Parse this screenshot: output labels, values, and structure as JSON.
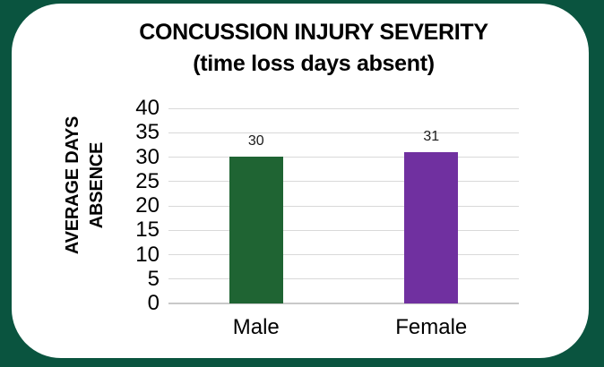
{
  "page": {
    "frame_color": "#0a543f",
    "card_color": "#ffffff"
  },
  "chart_data": {
    "type": "bar",
    "title": "CONCUSSION INJURY SEVERITY",
    "subtitle": "(time loss days absent)",
    "ylabel": "AVERAGE DAYS ABSENCE",
    "ylabel_lines": [
      "AVERAGE DAYS",
      "ABSENCE"
    ],
    "categories": [
      "Male",
      "Female"
    ],
    "values": [
      30,
      31
    ],
    "data_labels": [
      "30",
      "31"
    ],
    "bar_colors": [
      "#1f6433",
      "#7030a0"
    ],
    "ylim": [
      0,
      40
    ],
    "yticks": [
      0,
      5,
      10,
      15,
      20,
      25,
      30,
      35,
      40
    ],
    "grid": true,
    "gridline_color": "#d9d9d9",
    "axis_line_color": "#c9c9c9",
    "legend_position": "none",
    "text_color": "#000000"
  }
}
